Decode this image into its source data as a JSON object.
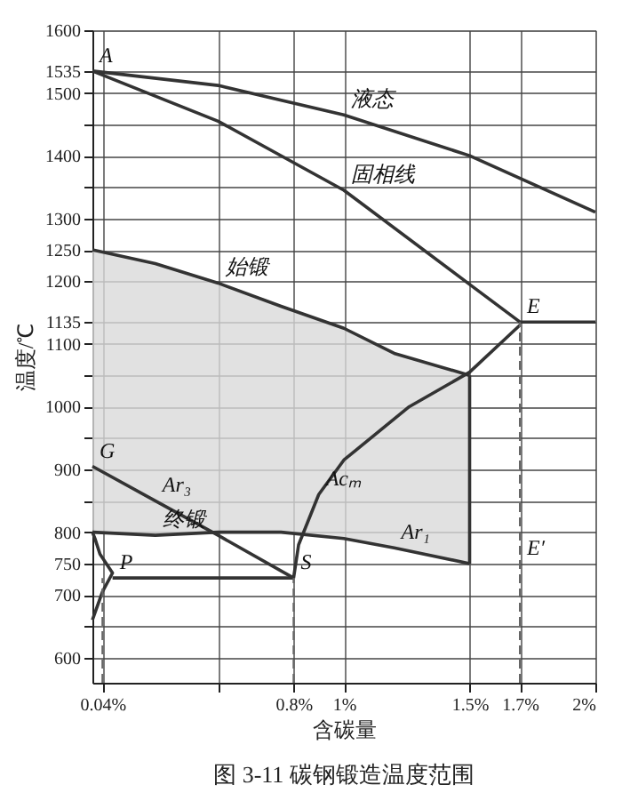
{
  "chart_data": {
    "type": "line",
    "title": "图 3-11   碳钢锻造温度范围",
    "xlabel": "含碳量",
    "ylabel": "温度/℃",
    "xlim": [
      0,
      2
    ],
    "ylim": [
      560,
      1600
    ],
    "xticks": [
      {
        "value": 0.04,
        "label": "0.04%"
      },
      {
        "value": 0.5,
        "label": null
      },
      {
        "value": 0.8,
        "label": "0.8%"
      },
      {
        "value": 1,
        "label": "1%"
      },
      {
        "value": 1.5,
        "label": "1.5%"
      },
      {
        "value": 1.7,
        "label": "1.7%"
      },
      {
        "value": 2,
        "label": "2%"
      }
    ],
    "yticks": [
      600,
      {
        "value": 650,
        "label": null
      },
      700,
      750,
      800,
      {
        "value": 850,
        "label": null
      },
      900,
      {
        "value": 950,
        "label": null
      },
      1000,
      {
        "value": 1050,
        "label": null
      },
      1100,
      1135,
      1200,
      1250,
      1300,
      {
        "value": 1350,
        "label": null
      },
      1400,
      {
        "value": 1450,
        "label": null
      },
      1500,
      1535,
      1600
    ],
    "grid": true,
    "series": [
      {
        "color": "#333333",
        "line_style": "solid",
        "x": [
          0,
          0.25,
          0.5,
          0.75,
          1.0,
          1.2,
          1.5
        ],
        "values": [
          1250,
          1228,
          1197,
          1160,
          1125,
          1085,
          1050
        ],
        "lower": [
          800,
          795,
          800,
          800,
          790,
          775,
          750
        ],
        "upper": [
          1250,
          1228,
          1197,
          1160,
          1125,
          1085,
          1050
        ]
      },
      {
        "color": "#333333",
        "line_style": "solid",
        "x": [
          0,
          0.25,
          0.5,
          0.75,
          1.0,
          1.2,
          1.5
        ],
        "values": [
          800,
          795,
          800,
          800,
          790,
          775,
          750
        ]
      },
      {
        "color": "#333333",
        "line_style": "solid",
        "x": [
          0,
          0.5,
          1.0,
          1.5,
          2.0
        ],
        "values": [
          1535,
          1512,
          1465,
          1400,
          1310
        ]
      },
      {
        "color": "#333333",
        "line_style": "solid",
        "x": [
          0,
          0.5,
          1.0,
          1.5,
          1.7,
          2.0
        ],
        "values": [
          1535,
          1455,
          1345,
          1195,
          1135,
          1135
        ]
      },
      {
        "color": "#333333",
        "line_style": "solid",
        "x": [
          0.8,
          0.82,
          0.9,
          1.0,
          1.26,
          1.5,
          1.7
        ],
        "values": [
          727,
          780,
          860,
          915,
          1000,
          1055,
          1130
        ]
      },
      {
        "color": "#333333",
        "line_style": "solid",
        "x": [
          0,
          0.25,
          0.5,
          0.8
        ],
        "values": [
          905,
          850,
          795,
          727
        ]
      },
      {
        "color": "#333333",
        "line_style": "solid",
        "x": [
          0,
          0.01,
          0.03,
          0.08,
          0.04,
          0
        ],
        "values": [
          800,
          790,
          765,
          735,
          705,
          660
        ]
      },
      {
        "color": "#333333",
        "line_style": "solid",
        "x": [
          0.08,
          0.8
        ],
        "values": [
          727,
          727
        ]
      },
      {
        "color": "#333333",
        "line_style": "solid",
        "x": [
          1.5,
          1.5
        ],
        "values": [
          1050,
          750
        ]
      },
      {
        "color": "#666666",
        "line_style": "dashed",
        "x": [
          0.04,
          0.04
        ],
        "values": [
          560,
          727
        ]
      },
      {
        "color": "#666666",
        "line_style": "dashed",
        "x": [
          0.8,
          0.8
        ],
        "values": [
          560,
          727
        ]
      },
      {
        "color": "#666666",
        "line_style": "dashed",
        "x": [
          1.7,
          1.7
        ],
        "values": [
          560,
          1135
        ]
      }
    ],
    "annotations": [
      {
        "text": "A",
        "x": 0,
        "y": 1535
      },
      {
        "text": "液态",
        "x": 1.0,
        "y": 1465
      },
      {
        "text": "固相线",
        "x": 1.0,
        "y": 1345
      },
      {
        "text": "始锻",
        "x": 0.5,
        "y": 1197
      },
      {
        "text": "E",
        "x": 1.7,
        "y": 1135
      },
      {
        "text": "G",
        "x": 0,
        "y": 905
      },
      {
        "text": "Acₘ",
        "x": 0.9,
        "y": 860
      },
      {
        "text": "Ar₃",
        "x": 0.25,
        "y": 850
      },
      {
        "text": "终锻",
        "x": 0.25,
        "y": 795
      },
      {
        "text": "Ar₁",
        "x": 1.2,
        "y": 775
      },
      {
        "text": "E′",
        "x": 1.7,
        "y": 750
      },
      {
        "text": "P",
        "x": 0.08,
        "y": 727
      },
      {
        "text": "S",
        "x": 0.8,
        "y": 727
      }
    ]
  }
}
